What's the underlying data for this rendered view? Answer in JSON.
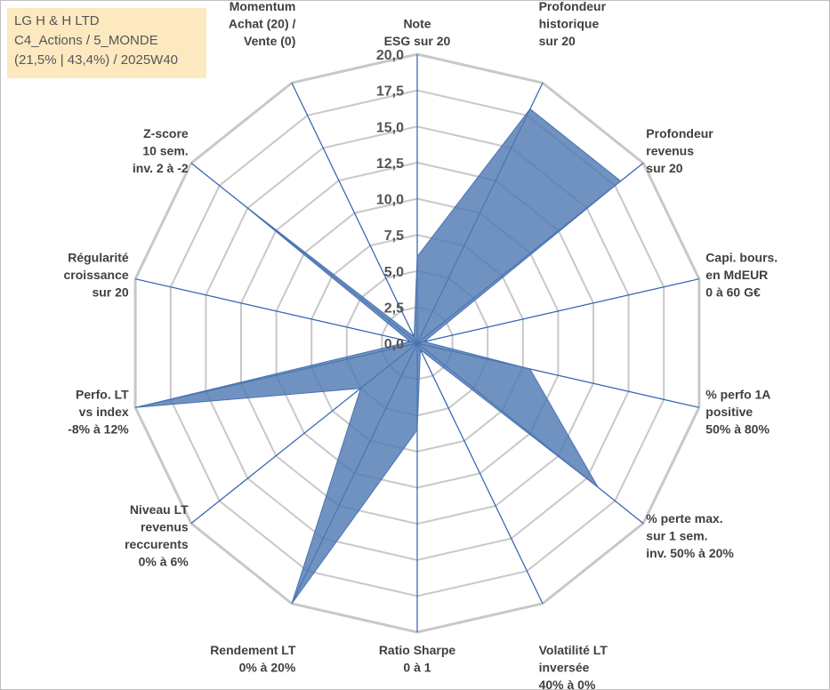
{
  "info_box": {
    "line1": "LG H & H LTD",
    "line2": "C4_Actions / 5_MONDE",
    "line3": "(21,5% | 43,4%) / 2025W40"
  },
  "colors": {
    "fill": "#4f7ab3",
    "stroke": "#4a72b0",
    "axis": "#2f5fb0",
    "grid": "#c8c8c8",
    "info_bg": "#fde9c0"
  },
  "chart_data": {
    "type": "radar",
    "scale_max": 20,
    "ticks": [
      "0,0",
      "2,5",
      "5,0",
      "7,5",
      "10,0",
      "12,5",
      "15,0",
      "17,5",
      "20,0"
    ],
    "grid": true,
    "categories": [
      [
        "Note",
        "ESG sur 20"
      ],
      [
        "Profondeur",
        "historique",
        "sur 20"
      ],
      [
        "Profondeur",
        "revenus",
        "sur 20"
      ],
      [
        "Capi. bours.",
        "en MdEUR",
        "0 à 60 G€"
      ],
      [
        "% perfo 1A",
        "positive",
        "50% à 80%"
      ],
      [
        "% perte max.",
        "sur 1 sem.",
        "inv. 50% à 20%"
      ],
      [
        "Volatilité LT",
        "inversée",
        "40% à 0%"
      ],
      [
        "Ratio Sharpe",
        "0 à 1"
      ],
      [
        "Rendement LT",
        "0% à 20%"
      ],
      [
        "Niveau LT",
        "revenus",
        "reccurents",
        "0% à 6%"
      ],
      [
        "Perfo. LT",
        "vs index",
        "-8% à 12%"
      ],
      [
        "Régularité",
        "croissance",
        "sur 20"
      ],
      [
        "Z-score",
        "10 sem.",
        "inv. 2 à -2"
      ],
      [
        "Momentum",
        "Achat (20) /",
        "Vente (0)"
      ]
    ],
    "series": [
      {
        "values": [
          6,
          18,
          18,
          0.5,
          8,
          16,
          0.5,
          6,
          20,
          5,
          20,
          0.5,
          16,
          0.5
        ]
      }
    ]
  }
}
